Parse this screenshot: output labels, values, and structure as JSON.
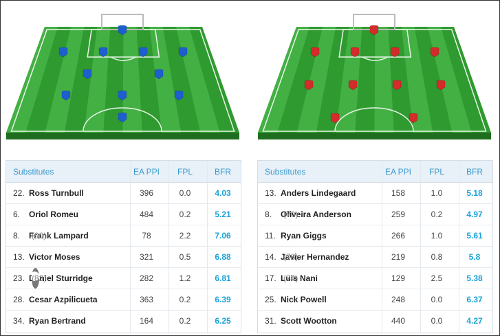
{
  "teams": [
    {
      "color": "#1e5fcf",
      "substitutes_header": {
        "name": "Substitutes",
        "ea": "EA PPI",
        "fpl": "FPL",
        "bfr": "BFR"
      },
      "rows": [
        {
          "num": "22.",
          "name": "Ross Turnbull",
          "pts": "",
          "ea": "396",
          "fpl": "0.0",
          "bfr": "4.03"
        },
        {
          "num": "6.",
          "name": "Oriol Romeu",
          "pts": "",
          "ea": "484",
          "fpl": "0.2",
          "bfr": "5.21"
        },
        {
          "num": "8.",
          "name": "Frank Lampard",
          "pts": "(90)",
          "ea": "78",
          "fpl": "2.2",
          "bfr": "7.06"
        },
        {
          "num": "13.",
          "name": "Victor Moses",
          "pts": "",
          "ea": "321",
          "fpl": "0.5",
          "bfr": "6.88"
        },
        {
          "num": "23.",
          "name": "Daniel Sturridge",
          "pts": "(83)",
          "ea": "282",
          "fpl": "1.2",
          "bfr": "6.81",
          "ball_icon": true
        },
        {
          "num": "28.",
          "name": "Cesar Azpilicueta",
          "pts": "",
          "ea": "363",
          "fpl": "0.2",
          "bfr": "6.39"
        },
        {
          "num": "34.",
          "name": "Ryan Bertrand",
          "pts": "",
          "ea": "164",
          "fpl": "0.2",
          "bfr": "6.25"
        }
      ]
    },
    {
      "color": "#d42b2b",
      "substitutes_header": {
        "name": "Substitutes",
        "ea": "EA PPI",
        "fpl": "FPL",
        "bfr": "BFR"
      },
      "rows": [
        {
          "num": "13.",
          "name": "Anders Lindegaard",
          "pts": "",
          "ea": "158",
          "fpl": "1.0",
          "bfr": "5.18"
        },
        {
          "num": "8.",
          "name": "Oliveira Anderson",
          "pts": "(70)",
          "ea": "259",
          "fpl": "0.2",
          "bfr": "4.97"
        },
        {
          "num": "11.",
          "name": "Ryan Giggs",
          "pts": "",
          "ea": "266",
          "fpl": "1.0",
          "bfr": "5.61"
        },
        {
          "num": "14.",
          "name": "Javier Hernandez",
          "pts": "(78)",
          "ea": "219",
          "fpl": "0.8",
          "bfr": "5.8"
        },
        {
          "num": "17.",
          "name": "Luis Nani",
          "pts": "(74)",
          "ea": "129",
          "fpl": "2.5",
          "bfr": "5.38"
        },
        {
          "num": "25.",
          "name": "Nick Powell",
          "pts": "",
          "ea": "248",
          "fpl": "0.0",
          "bfr": "6.37"
        },
        {
          "num": "31.",
          "name": "Scott Wootton",
          "pts": "",
          "ea": "440",
          "fpl": "0.0",
          "bfr": "4.27"
        }
      ]
    }
  ],
  "icons": {
    "shirt": "shirt-icon",
    "ball": "ball-icon"
  }
}
